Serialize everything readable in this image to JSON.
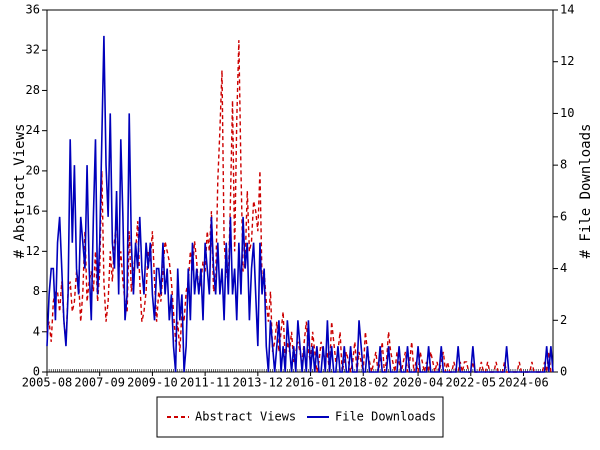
{
  "chart_data": {
    "type": "line",
    "y_label": "# Abstract Views",
    "y2_label": "# File Downloads",
    "x": [
      "2005-08",
      null,
      null,
      null,
      null,
      null,
      null,
      null,
      null,
      null,
      null,
      null,
      null,
      null,
      null,
      null,
      null,
      null,
      null,
      null,
      null,
      null,
      null,
      null,
      null,
      "2007-09",
      null,
      null,
      null,
      null,
      null,
      null,
      null,
      null,
      null,
      null,
      null,
      null,
      null,
      null,
      null,
      null,
      null,
      null,
      null,
      null,
      null,
      null,
      null,
      null,
      "2009-10",
      null,
      null,
      null,
      null,
      null,
      null,
      null,
      null,
      null,
      null,
      null,
      null,
      null,
      null,
      null,
      null,
      null,
      null,
      null,
      null,
      null,
      null,
      null,
      null,
      "2011-11",
      null,
      null,
      null,
      null,
      null,
      null,
      null,
      null,
      null,
      null,
      null,
      null,
      null,
      null,
      null,
      null,
      null,
      null,
      null,
      null,
      null,
      null,
      null,
      null,
      "2013-12",
      null,
      null,
      null,
      null,
      null,
      null,
      null,
      null,
      null,
      null,
      null,
      null,
      null,
      null,
      null,
      null,
      null,
      null,
      null,
      null,
      null,
      null,
      null,
      null,
      "2016-01",
      null,
      null,
      null,
      null,
      null,
      null,
      null,
      null,
      null,
      null,
      null,
      null,
      null,
      null,
      null,
      null,
      null,
      null,
      null,
      null,
      null,
      null,
      null,
      null,
      "2018-02",
      null,
      null,
      null,
      null,
      null,
      null,
      null,
      null,
      null,
      null,
      null,
      null,
      null,
      null,
      null,
      null,
      null,
      null,
      null,
      null,
      null,
      null,
      null,
      null,
      null,
      "2020-04",
      null,
      null,
      null,
      null,
      null,
      null,
      null,
      null,
      null,
      null,
      null,
      null,
      null,
      null,
      null,
      null,
      null,
      null,
      null,
      null,
      null,
      null,
      null,
      null,
      "2022-05",
      null,
      null,
      null,
      null,
      null,
      null,
      null,
      null,
      null,
      null,
      null,
      null,
      null,
      null,
      null,
      null,
      null,
      null,
      null,
      null,
      null,
      null,
      null,
      null,
      "2024-06",
      null,
      null,
      null,
      null,
      null,
      null,
      null,
      null,
      null,
      null,
      null,
      null,
      null,
      null
    ],
    "series": [
      {
        "name": "Abstract Views",
        "color": "#cc0000",
        "dash": true,
        "values": [
          4,
          5,
          3,
          7,
          8,
          8,
          6,
          9,
          5,
          3,
          8,
          9,
          6,
          7,
          10,
          9,
          5,
          8,
          14,
          7,
          9,
          10,
          8,
          12,
          7,
          10,
          20,
          9,
          5,
          7,
          12,
          9,
          13,
          15,
          10,
          12,
          9,
          7,
          6,
          14,
          8,
          10,
          12,
          15,
          9,
          5,
          6,
          8,
          12,
          11,
          14,
          9,
          5,
          8,
          7,
          10,
          13,
          12,
          11,
          9,
          6,
          3,
          5,
          2,
          6,
          5,
          8,
          9,
          12,
          10,
          13,
          11,
          8,
          9,
          11,
          10,
          14,
          12,
          16,
          8,
          9,
          19,
          24,
          30,
          13,
          10,
          9,
          17,
          27,
          12,
          25,
          33,
          20,
          10,
          11,
          18,
          12,
          13,
          17,
          16,
          14,
          20,
          9,
          10,
          7,
          5,
          8,
          2,
          3,
          5,
          2,
          4,
          6,
          1,
          3,
          2,
          4,
          1,
          2,
          3,
          2,
          1,
          3,
          5,
          2,
          1,
          4,
          2,
          0,
          1,
          3,
          2,
          1,
          2,
          0,
          5,
          3,
          1,
          2,
          4,
          0,
          1,
          2,
          1,
          0,
          1,
          3,
          0,
          2,
          1,
          0,
          4,
          2,
          1,
          0,
          1,
          2,
          0,
          1,
          3,
          0,
          1,
          4,
          2,
          1,
          0,
          2,
          1,
          0,
          1,
          2,
          0,
          1,
          3,
          0,
          1,
          0,
          2,
          1,
          0,
          1,
          0,
          2,
          1,
          0,
          1,
          0,
          1,
          2,
          0,
          1,
          0,
          0,
          1,
          0,
          0,
          1,
          0,
          1,
          1,
          0,
          0,
          1,
          0,
          0,
          0,
          1,
          0,
          0,
          1,
          0,
          0,
          0,
          1,
          0,
          0,
          0,
          1,
          0,
          0,
          0,
          0,
          0,
          0,
          1,
          0,
          0,
          0,
          0,
          0,
          1,
          0,
          0,
          0,
          0,
          0,
          1,
          0,
          2,
          0,
          0
        ]
      },
      {
        "name": "File Downloads",
        "color": "#0000bb",
        "dash": false,
        "axis": "y2",
        "values": [
          1,
          3,
          4,
          4,
          2,
          5,
          6,
          4,
          2,
          1,
          3,
          9,
          5,
          8,
          4,
          3,
          6,
          5,
          4,
          8,
          4,
          2,
          6,
          9,
          3,
          5,
          9,
          13,
          8,
          6,
          10,
          5,
          4,
          7,
          3,
          9,
          6,
          2,
          3,
          10,
          5,
          3,
          5,
          4,
          6,
          4,
          3,
          5,
          4,
          5,
          3,
          2,
          4,
          4,
          3,
          5,
          3,
          4,
          2,
          3,
          1,
          0,
          4,
          2,
          3,
          0,
          1,
          4,
          2,
          5,
          3,
          4,
          3,
          4,
          2,
          5,
          4,
          3,
          6,
          4,
          3,
          5,
          3,
          4,
          2,
          5,
          3,
          6,
          3,
          4,
          2,
          5,
          3,
          6,
          4,
          5,
          2,
          4,
          5,
          3,
          1,
          5,
          3,
          4,
          1,
          0,
          2,
          1,
          0,
          1,
          2,
          0,
          1,
          0,
          2,
          1,
          0,
          1,
          0,
          2,
          1,
          0,
          1,
          0,
          2,
          0,
          1,
          0,
          1,
          0,
          0,
          1,
          0,
          2,
          0,
          1,
          0,
          0,
          1,
          0,
          0,
          1,
          0,
          0,
          1,
          0,
          0,
          0,
          2,
          1,
          0,
          0,
          1,
          0,
          0,
          0,
          0,
          0,
          1,
          0,
          0,
          0,
          1,
          0,
          0,
          0,
          0,
          1,
          0,
          0,
          0,
          1,
          0,
          0,
          0,
          0,
          1,
          0,
          0,
          0,
          0,
          1,
          0,
          0,
          0,
          0,
          0,
          1,
          0,
          0,
          0,
          0,
          0,
          0,
          0,
          1,
          0,
          0,
          0,
          0,
          0,
          0,
          1,
          0,
          0,
          0,
          0,
          0,
          0,
          0,
          0,
          0,
          0,
          0,
          0,
          0,
          0,
          0,
          1,
          0,
          0,
          0,
          0,
          0,
          0,
          0,
          0,
          0,
          0,
          0,
          0,
          0,
          0,
          0,
          0,
          0,
          0,
          1,
          0,
          1,
          0
        ]
      }
    ],
    "ylim": [
      0,
      36
    ],
    "yticks": [
      0,
      4,
      8,
      12,
      16,
      20,
      24,
      28,
      32,
      36
    ],
    "y2lim": [
      0,
      14
    ],
    "y2ticks": [
      0,
      2,
      4,
      6,
      8,
      10,
      12,
      14
    ],
    "legend": "bottom"
  }
}
